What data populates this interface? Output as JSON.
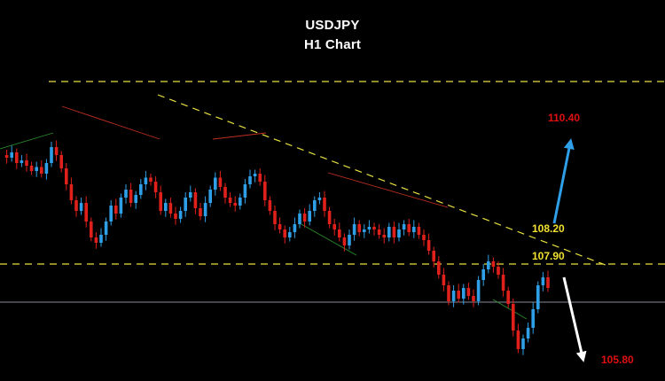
{
  "chart_data": {
    "type": "candlestick",
    "title": "USDJPY",
    "subtitle": "H1 Chart",
    "colors": {
      "background": "#000000",
      "up_candle": "#2f9fe8",
      "down_candle": "#e0201a",
      "resistance_line": "#e8e040",
      "support_line": "#e8e040",
      "current_price_line": "#8a8a9a",
      "target_up": "#e01010",
      "target_down": "#e01010",
      "level_label": "#f0e030",
      "arrow_up": "#2f9fe8",
      "arrow_down": "#ffffff"
    },
    "levels": [
      {
        "label": "110.40",
        "kind": "target-up"
      },
      {
        "label": "108.20",
        "kind": "breakout-level"
      },
      {
        "label": "107.90",
        "kind": "support"
      },
      {
        "label": "105.80",
        "kind": "target-down"
      }
    ],
    "price_path": [
      108.72,
      108.7,
      108.74,
      108.66,
      108.68,
      108.64,
      108.6,
      108.63,
      108.58,
      108.66,
      108.78,
      108.72,
      108.62,
      108.5,
      108.38,
      108.3,
      108.36,
      108.22,
      108.1,
      108.06,
      108.12,
      108.22,
      108.34,
      108.28,
      108.4,
      108.46,
      108.36,
      108.42,
      108.5,
      108.55,
      108.52,
      108.44,
      108.3,
      108.36,
      108.28,
      108.24,
      108.3,
      108.4,
      108.44,
      108.32,
      108.26,
      108.36,
      108.46,
      108.55,
      108.48,
      108.4,
      108.36,
      108.34,
      108.4,
      108.5,
      108.56,
      108.58,
      108.52,
      108.38,
      108.3,
      108.2,
      108.16,
      108.1,
      108.14,
      108.2,
      108.28,
      108.22,
      108.3,
      108.38,
      108.4,
      108.3,
      108.2,
      108.16,
      108.1,
      108.04,
      108.12,
      108.2,
      108.14,
      108.16,
      108.18,
      108.16,
      108.12,
      108.1,
      108.18,
      108.1,
      108.16,
      108.2,
      108.14,
      108.18,
      108.12,
      108.08,
      108.0,
      107.92,
      107.82,
      107.74,
      107.62,
      107.7,
      107.64,
      107.72,
      107.66,
      107.62,
      107.78,
      107.86,
      107.92,
      107.88,
      107.82,
      107.7,
      107.6,
      107.4,
      107.26,
      107.34,
      107.42,
      107.56,
      107.74,
      107.8,
      107.72
    ]
  }
}
